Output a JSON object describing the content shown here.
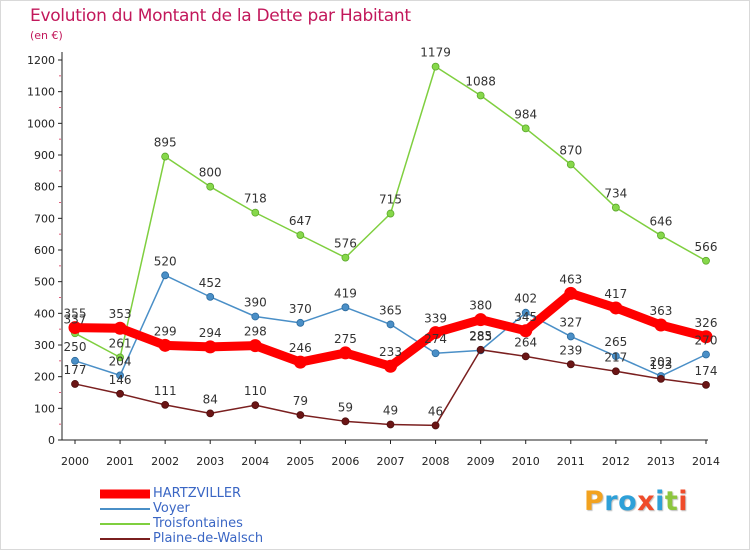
{
  "title": "Evolution du Montant de la Dette par Habitant",
  "unit_label": "(en €)",
  "logo": {
    "letters": [
      "P",
      "r",
      "o",
      "x",
      "i",
      "t",
      "i"
    ],
    "colors": [
      "#f2a21f",
      "#2ea0d8",
      "#2ea0d8",
      "#ef4b2a",
      "#2ea0d8",
      "#8cc63e",
      "#ef4b2a"
    ]
  },
  "chart_data": {
    "type": "line",
    "title": "Evolution du Montant de la Dette par Habitant",
    "ylabel": "(en €)",
    "xlabel": "",
    "ylim": [
      0,
      1200
    ],
    "yticks": [
      0,
      100,
      200,
      300,
      400,
      500,
      600,
      700,
      800,
      900,
      1000,
      1100,
      1200
    ],
    "grid": false,
    "legend_position": "bottom-left",
    "x": [
      "2000",
      "2001",
      "2002",
      "2003",
      "2004",
      "2005",
      "2006",
      "2007",
      "2008",
      "2009",
      "2010",
      "2011",
      "2012",
      "2013",
      "2014"
    ],
    "series": [
      {
        "name": "HARTZVILLER",
        "color": "#ff0000",
        "values": [
          355,
          353,
          299,
          294,
          298,
          246,
          275,
          233,
          339,
          380,
          345,
          463,
          417,
          363,
          326
        ]
      },
      {
        "name": "Voyer",
        "color": "#4a8fc7",
        "values": [
          250,
          204,
          520,
          452,
          390,
          370,
          419,
          365,
          274,
          283,
          402,
          327,
          265,
          202,
          270
        ]
      },
      {
        "name": "Troisfontaines",
        "color": "#7fcf3f",
        "values": [
          337,
          261,
          895,
          800,
          718,
          647,
          576,
          715,
          1179,
          1088,
          984,
          870,
          734,
          646,
          566
        ]
      },
      {
        "name": "Plaine-de-Walsch",
        "color": "#7a1f1f",
        "values": [
          177,
          146,
          111,
          84,
          110,
          79,
          59,
          49,
          46,
          285,
          264,
          239,
          217,
          193,
          174
        ]
      }
    ]
  }
}
